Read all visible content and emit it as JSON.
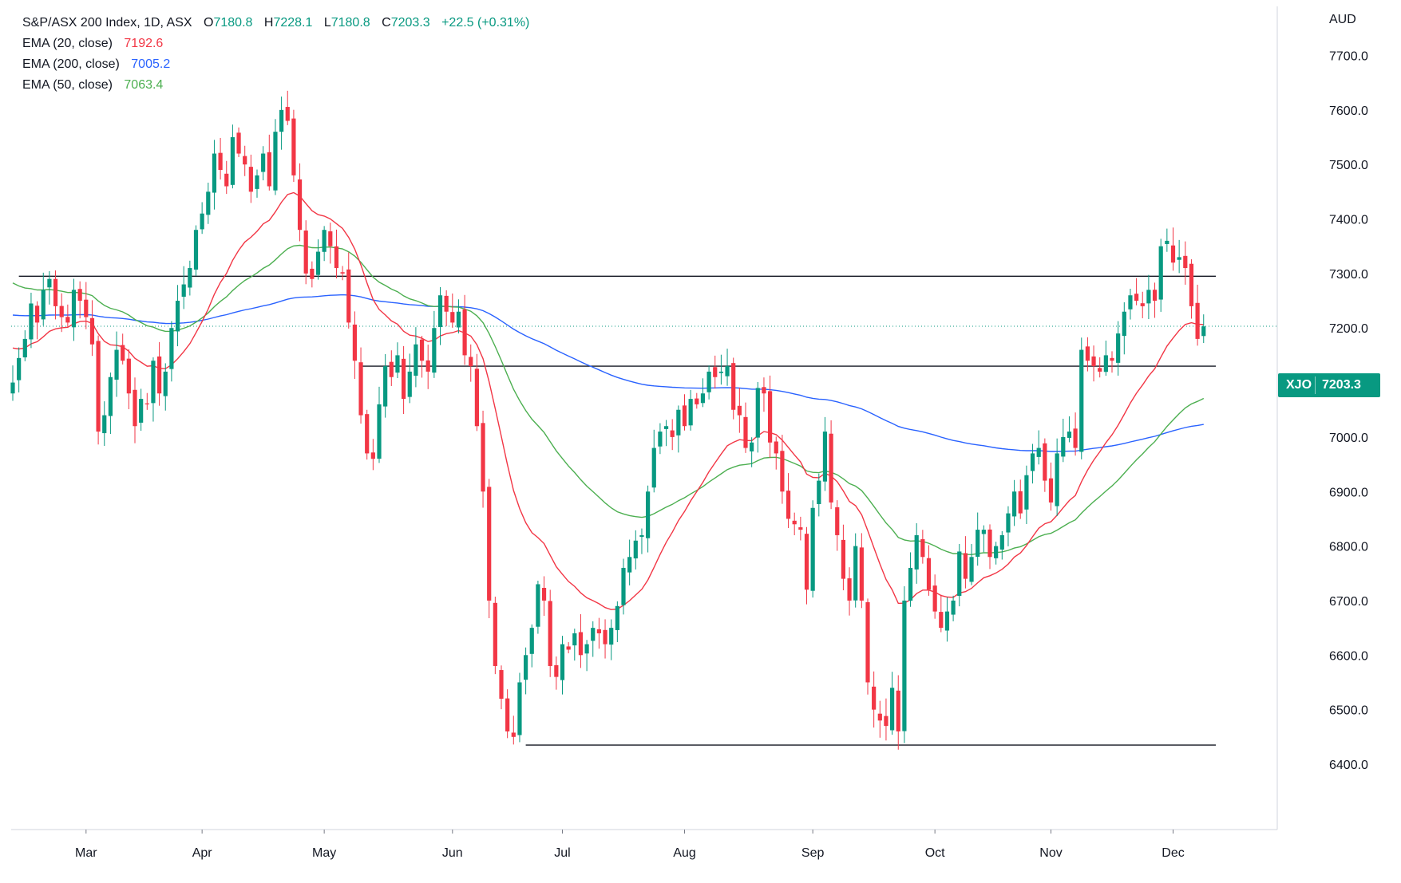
{
  "header": {
    "symbol": "S&P/ASX 200 Index, 1D, ASX",
    "open_label": "O",
    "open": "7180.8",
    "high_label": "H",
    "high": "7228.1",
    "low_label": "L",
    "low": "7180.8",
    "close_label": "C",
    "close": "7203.3",
    "change": "+22.5 (+0.31%)"
  },
  "indicators": [
    {
      "label": "EMA (20, close)",
      "value": "7192.6",
      "color": "#f23645"
    },
    {
      "label": "EMA (200, close)",
      "value": "7005.2",
      "color": "#2962ff"
    },
    {
      "label": "EMA (50, close)",
      "value": "7063.4",
      "color": "#4caf50"
    }
  ],
  "currency": "AUD",
  "price_badge": {
    "ticker": "XJO",
    "value": "7203.3",
    "color": "#089981"
  },
  "colors": {
    "up": "#089981",
    "down": "#f23645",
    "ema20": "#f23645",
    "ema50": "#4caf50",
    "ema200": "#2962ff",
    "level": "#131722",
    "grid": "#e0e3eb"
  },
  "chart_data": {
    "type": "candlestick",
    "title": "S&P/ASX 200 Index, 1D, ASX",
    "ylim": [
      6280,
      7790
    ],
    "y_ticks": [
      "7700.0",
      "7600.0",
      "7500.0",
      "7400.0",
      "7300.0",
      "7200.0",
      "7100.0",
      "7000.0",
      "6900.0",
      "6800.0",
      "6700.0",
      "6600.0",
      "6500.0",
      "6400.0"
    ],
    "y_tick_values": [
      7700,
      7600,
      7500,
      7400,
      7300,
      7200,
      7100,
      7000,
      6900,
      6800,
      6700,
      6600,
      6500,
      6400
    ],
    "x_ticks": [
      {
        "label": "Mar",
        "day": 12
      },
      {
        "label": "Apr",
        "day": 31
      },
      {
        "label": "May",
        "day": 51
      },
      {
        "label": "Jun",
        "day": 72
      },
      {
        "label": "Jul",
        "day": 90
      },
      {
        "label": "Aug",
        "day": 110
      },
      {
        "label": "Sep",
        "day": 131
      },
      {
        "label": "Oct",
        "day": 151
      },
      {
        "label": "Nov",
        "day": 170
      },
      {
        "label": "Dec",
        "day": 190
      }
    ],
    "horizontal_levels": [
      {
        "value": 7295,
        "from_day": 1,
        "to_day": 197
      },
      {
        "value": 7130,
        "from_day": 57,
        "to_day": 197
      },
      {
        "value": 6435,
        "from_day": 84,
        "to_day": 197
      }
    ],
    "last_price_line": 7203.3,
    "closes": [
      7100,
      7145,
      7180,
      7245,
      7210,
      7270,
      7290,
      7240,
      7220,
      7210,
      7270,
      7250,
      7220,
      7170,
      7010,
      7040,
      7110,
      7160,
      7140,
      7080,
      7020,
      7070,
      7060,
      7140,
      7080,
      7120,
      7200,
      7250,
      7280,
      7310,
      7380,
      7410,
      7450,
      7520,
      7490,
      7460,
      7550,
      7520,
      7500,
      7450,
      7480,
      7520,
      7460,
      7560,
      7600,
      7580,
      7480,
      7380,
      7300,
      7290,
      7340,
      7380,
      7350,
      7310,
      7300,
      7210,
      7140,
      7040,
      6970,
      6960,
      7060,
      7130,
      7110,
      7150,
      7070,
      7120,
      7170,
      7140,
      7120,
      7200,
      7260,
      7230,
      7210,
      7230,
      7150,
      7130,
      7020,
      6900,
      6700,
      6580,
      6520,
      6460,
      6450,
      6550,
      6600,
      6650,
      6730,
      6700,
      6580,
      6560,
      6620,
      6610,
      6640,
      6600,
      6620,
      6650,
      6640,
      6620,
      6650,
      6690,
      6760,
      6780,
      6810,
      6820,
      6900,
      6980,
      7010,
      7020,
      7000,
      7050,
      7020,
      7070,
      7060,
      7080,
      7120,
      7110,
      7120,
      7130,
      7050,
      7040,
      6980,
      6990,
      7090,
      7080,
      6990,
      6970,
      6900,
      6850,
      6840,
      6830,
      6720,
      6870,
      6920,
      7010,
      6880,
      6820,
      6740,
      6700,
      6800,
      6700,
      6550,
      6500,
      6480,
      6470,
      6540,
      6460,
      6700,
      6760,
      6820,
      6780,
      6720,
      6680,
      6650,
      6680,
      6700,
      6790,
      6740,
      6780,
      6830,
      6830,
      6780,
      6800,
      6820,
      6860,
      6900,
      6860,
      6930,
      6970,
      6980,
      6920,
      6880,
      6970,
      7000,
      7010,
      6980,
      7160,
      7140,
      7130,
      7120,
      7150,
      7140,
      7190,
      7230,
      7260,
      7250,
      7240,
      7270,
      7250,
      7350,
      7360,
      7320,
      7330,
      7310,
      7240,
      7180,
      7203
    ]
  }
}
